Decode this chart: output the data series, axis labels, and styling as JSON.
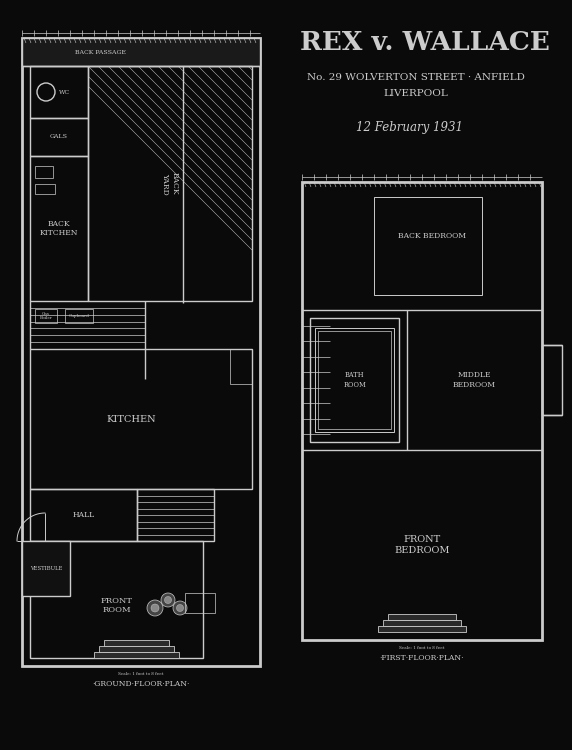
{
  "background_color": "#0a0a0a",
  "line_color": "#cccccc",
  "text_color": "#cccccc",
  "title_line1": "REX v. WALLACE",
  "title_line2": "No. 29 WOLVERTON STREET · ANFIELD",
  "title_line3": "LIVERPOOL",
  "title_line4": "12 February 1931",
  "label_ground": "·GROUND·FLOOR·PLAN·",
  "label_first": "·FIRST·FLOOR·PLAN·",
  "lw": 1.0,
  "lw_thick": 2.0
}
